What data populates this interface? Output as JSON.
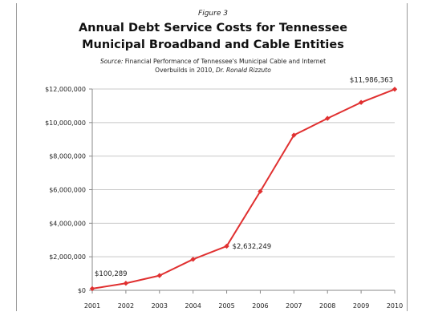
{
  "figure_label": "Figure 3",
  "title_line1": "Annual Debt Service Costs for Tennessee",
  "title_line2": "Municipal Broadband and Cable Entities",
  "source_prefix": "Source:",
  "source_line1_text": " Financial Performance of Tennessee's Municipal Cable and Internet",
  "source_line2_text": "Overbuilds in 2010, ",
  "source_author": "Dr. Ronald Rizzuto",
  "colors": {
    "line": "#e03030",
    "grid": "#c8c8c8",
    "text": "#222222"
  },
  "chart_data": {
    "type": "line",
    "title": "Annual Debt Service Costs for Tennessee Municipal Broadband and Cable Entities",
    "xlabel": "",
    "ylabel": "",
    "x": [
      2001,
      2002,
      2003,
      2004,
      2005,
      2006,
      2007,
      2008,
      2009,
      2010
    ],
    "y_tick_labels": [
      "$0",
      "$2,000,000",
      "$4,000,000",
      "$6,000,000",
      "$8,000,000",
      "$10,000,000",
      "$12,000,000"
    ],
    "y_tick_values": [
      0,
      2000000,
      4000000,
      6000000,
      8000000,
      10000000,
      12000000
    ],
    "ylim": [
      0,
      12000000
    ],
    "grid": true,
    "legend": "none",
    "series": [
      {
        "values": [
          100289,
          420000,
          880000,
          1850000,
          2632249,
          5900000,
          9250000,
          10250000,
          11200000,
          11986363
        ]
      }
    ],
    "annotations": [
      {
        "x": 2001,
        "y": 100289,
        "label": "$100,289"
      },
      {
        "x": 2005,
        "y": 2632249,
        "label": "$2,632,249"
      },
      {
        "x": 2010,
        "y": 11986363,
        "label": "$11,986,363"
      }
    ]
  }
}
